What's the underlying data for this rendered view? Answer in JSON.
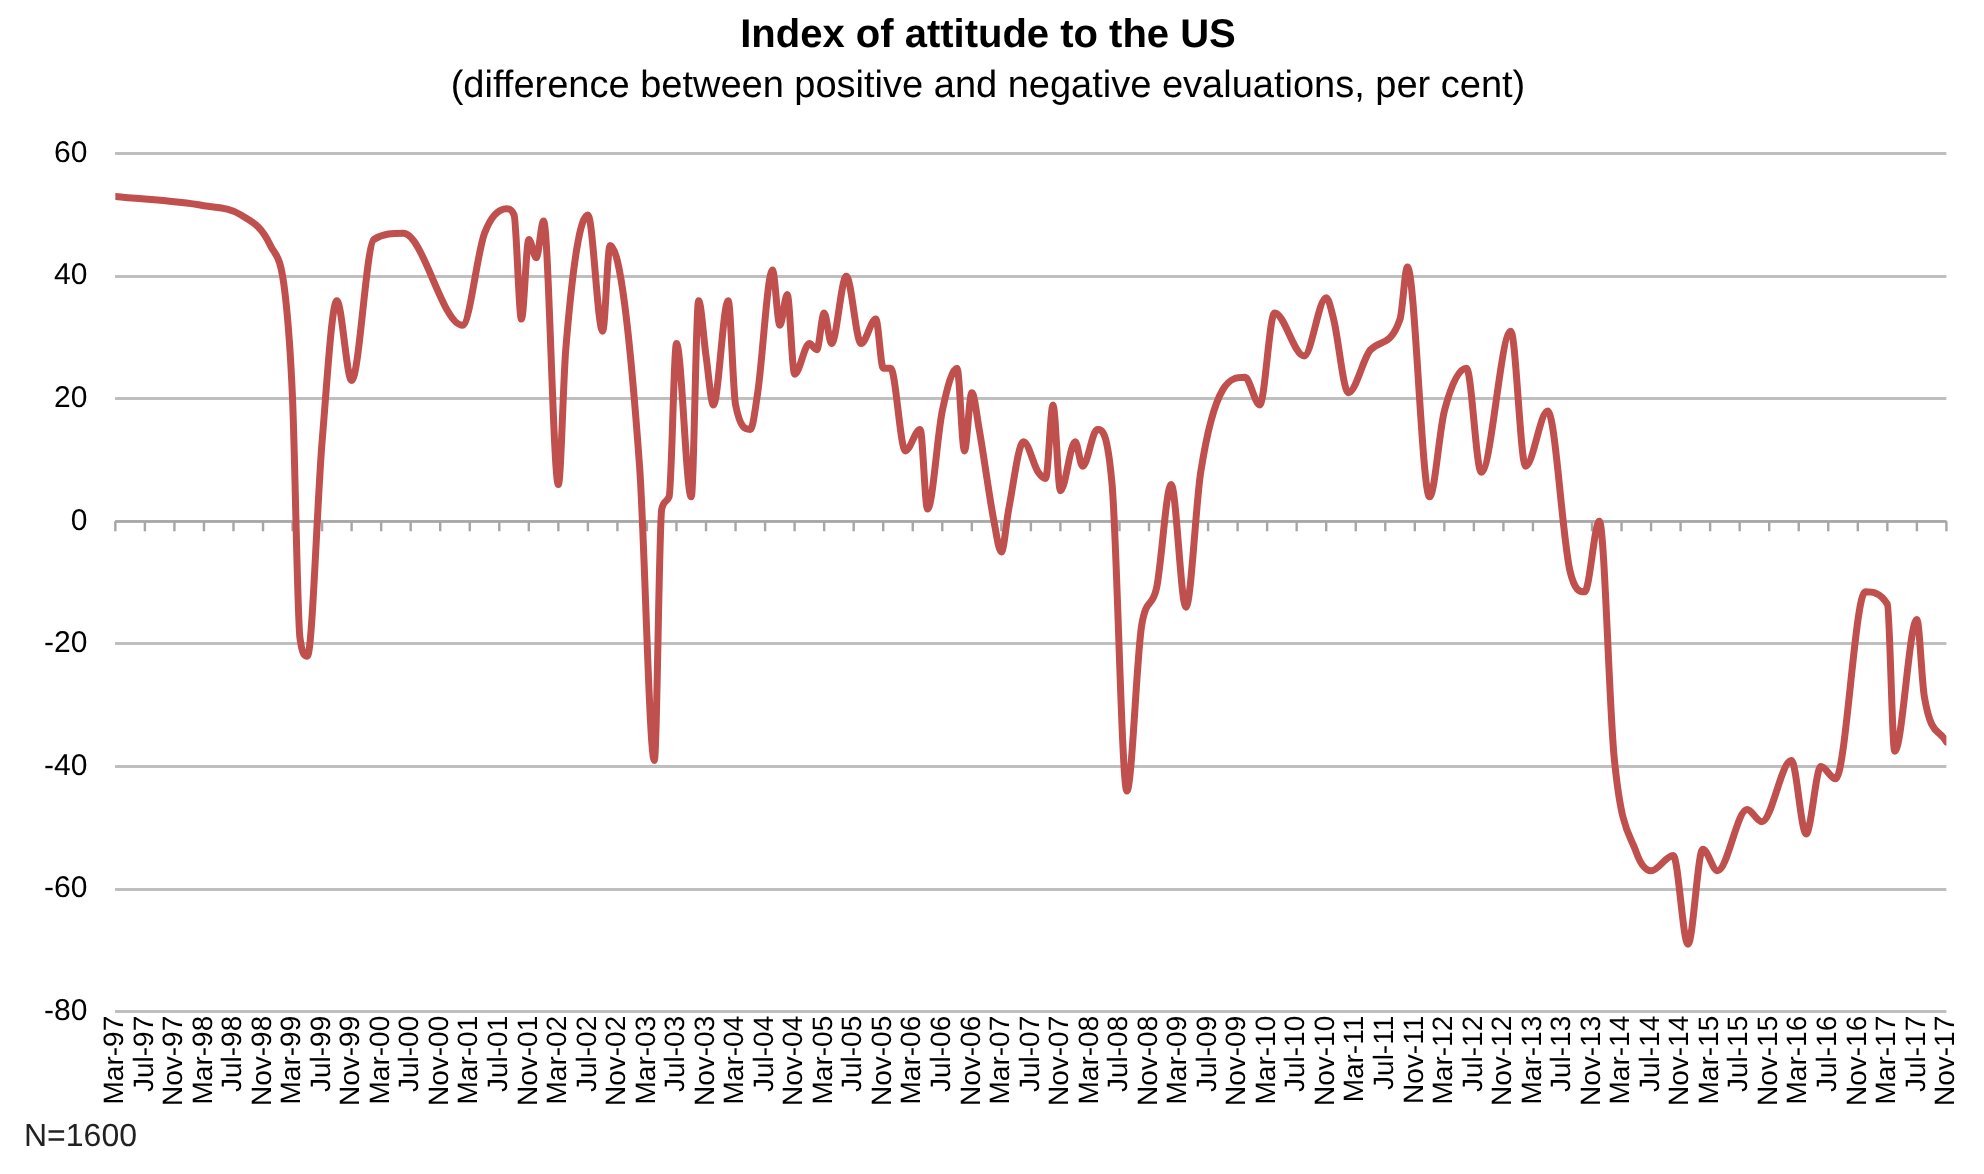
{
  "chart_data": {
    "type": "line",
    "title": "Index of attitude to the US",
    "subtitle": "(difference between positive and negative evaluations, per cent)",
    "annotations": [
      "N=1600"
    ],
    "xlim": [
      "1997-03",
      "2017-11"
    ],
    "xticks": [
      {
        "value": "1997-03",
        "label": "Mar-97"
      },
      {
        "value": "1997-07",
        "label": "Jul-97"
      },
      {
        "value": "1997-11",
        "label": "Nov-97"
      },
      {
        "value": "1998-03",
        "label": "Mar-98"
      },
      {
        "value": "1998-07",
        "label": "Jul-98"
      },
      {
        "value": "1998-11",
        "label": "Nov-98"
      },
      {
        "value": "1999-03",
        "label": "Mar-99"
      },
      {
        "value": "1999-07",
        "label": "Jul-99"
      },
      {
        "value": "1999-11",
        "label": "Nov-99"
      },
      {
        "value": "2000-03",
        "label": "Mar-00"
      },
      {
        "value": "2000-07",
        "label": "Jul-00"
      },
      {
        "value": "2000-11",
        "label": "Nov-00"
      },
      {
        "value": "2001-03",
        "label": "Mar-01"
      },
      {
        "value": "2001-07",
        "label": "Jul-01"
      },
      {
        "value": "2001-11",
        "label": "Nov-01"
      },
      {
        "value": "2002-03",
        "label": "Mar-02"
      },
      {
        "value": "2002-07",
        "label": "Jul-02"
      },
      {
        "value": "2002-11",
        "label": "Nov-02"
      },
      {
        "value": "2003-03",
        "label": "Mar-03"
      },
      {
        "value": "2003-07",
        "label": "Jul-03"
      },
      {
        "value": "2003-11",
        "label": "Nov-03"
      },
      {
        "value": "2004-03",
        "label": "Mar-04"
      },
      {
        "value": "2004-07",
        "label": "Jul-04"
      },
      {
        "value": "2004-11",
        "label": "Nov-04"
      },
      {
        "value": "2005-03",
        "label": "Mar-05"
      },
      {
        "value": "2005-07",
        "label": "Jul-05"
      },
      {
        "value": "2005-11",
        "label": "Nov-05"
      },
      {
        "value": "2006-03",
        "label": "Mar-06"
      },
      {
        "value": "2006-07",
        "label": "Jul-06"
      },
      {
        "value": "2006-11",
        "label": "Nov-06"
      },
      {
        "value": "2007-03",
        "label": "Mar-07"
      },
      {
        "value": "2007-07",
        "label": "Jul-07"
      },
      {
        "value": "2007-11",
        "label": "Nov-07"
      },
      {
        "value": "2008-03",
        "label": "Mar-08"
      },
      {
        "value": "2008-07",
        "label": "Jul-08"
      },
      {
        "value": "2008-11",
        "label": "Nov-08"
      },
      {
        "value": "2009-03",
        "label": "Mar-09"
      },
      {
        "value": "2009-07",
        "label": "Jul-09"
      },
      {
        "value": "2009-11",
        "label": "Nov-09"
      },
      {
        "value": "2010-03",
        "label": "Mar-10"
      },
      {
        "value": "2010-07",
        "label": "Jul-10"
      },
      {
        "value": "2010-11",
        "label": "Nov-10"
      },
      {
        "value": "2011-03",
        "label": "Mar-11"
      },
      {
        "value": "2011-07",
        "label": "Jul-11"
      },
      {
        "value": "2011-11",
        "label": "Nov-11"
      },
      {
        "value": "2012-03",
        "label": "Mar-12"
      },
      {
        "value": "2012-07",
        "label": "Jul-12"
      },
      {
        "value": "2012-11",
        "label": "Nov-12"
      },
      {
        "value": "2013-03",
        "label": "Mar-13"
      },
      {
        "value": "2013-07",
        "label": "Jul-13"
      },
      {
        "value": "2013-11",
        "label": "Nov-13"
      },
      {
        "value": "2014-03",
        "label": "Mar-14"
      },
      {
        "value": "2014-07",
        "label": "Jul-14"
      },
      {
        "value": "2014-11",
        "label": "Nov-14"
      },
      {
        "value": "2015-03",
        "label": "Mar-15"
      },
      {
        "value": "2015-07",
        "label": "Jul-15"
      },
      {
        "value": "2015-11",
        "label": "Nov-15"
      },
      {
        "value": "2016-03",
        "label": "Mar-16"
      },
      {
        "value": "2016-07",
        "label": "Jul-16"
      },
      {
        "value": "2016-11",
        "label": "Nov-16"
      },
      {
        "value": "2017-03",
        "label": "Mar-17"
      },
      {
        "value": "2017-07",
        "label": "Jul-17"
      },
      {
        "value": "2017-11",
        "label": "Nov-17"
      }
    ],
    "ylim": [
      -80,
      60
    ],
    "yticks": [
      -80,
      -60,
      -40,
      -20,
      0,
      20,
      40,
      60
    ],
    "grid": "y",
    "legend": false,
    "marker": "none",
    "line_style": "solid",
    "x": [
      "1997-03",
      "1998-03",
      "1998-08",
      "1998-12",
      "1999-02",
      "1999-03",
      "1999-04",
      "1999-05",
      "1999-07",
      "1999-09",
      "1999-11",
      "2000-02",
      "2000-06",
      "2001-02",
      "2001-05",
      "2001-08",
      "2001-09",
      "2001-10",
      "2001-11",
      "2001-12",
      "2002-01",
      "2002-03",
      "2002-04",
      "2002-07",
      "2002-09",
      "2002-10",
      "2003-02",
      "2003-04",
      "2003-05",
      "2003-06",
      "2003-07",
      "2003-09",
      "2003-10",
      "2003-11",
      "2003-12",
      "2004-02",
      "2004-03",
      "2004-05",
      "2004-06",
      "2004-08",
      "2004-09",
      "2004-10",
      "2004-11",
      "2005-01",
      "2005-02",
      "2005-03",
      "2005-04",
      "2005-06",
      "2005-08",
      "2005-10",
      "2005-11",
      "2005-12",
      "2006-02",
      "2006-04",
      "2006-05",
      "2006-07",
      "2006-09",
      "2006-10",
      "2006-11",
      "2006-12",
      "2007-02",
      "2007-03",
      "2007-04",
      "2007-06",
      "2007-08",
      "2007-09",
      "2007-10",
      "2007-11",
      "2008-01",
      "2008-02",
      "2008-04",
      "2008-06",
      "2008-08",
      "2008-10",
      "2008-12",
      "2009-02",
      "2009-04",
      "2009-06",
      "2009-09",
      "2009-12",
      "2010-02",
      "2010-04",
      "2010-08",
      "2010-11",
      "2010-12",
      "2011-02",
      "2011-05",
      "2011-09",
      "2011-10",
      "2012-01",
      "2012-03",
      "2012-06",
      "2012-08",
      "2012-12",
      "2013-02",
      "2013-05",
      "2013-08",
      "2013-10",
      "2013-12",
      "2014-02",
      "2014-05",
      "2014-07",
      "2014-10",
      "2014-12",
      "2015-02",
      "2015-04",
      "2015-08",
      "2015-10",
      "2016-02",
      "2016-04",
      "2016-06",
      "2016-08",
      "2016-12",
      "2017-03",
      "2017-04",
      "2017-07",
      "2017-08",
      "2017-11"
    ],
    "series": [
      {
        "color": "#c0504d",
        "values": [
          53,
          51.5,
          50,
          45,
          37,
          20,
          -19,
          -22,
          13,
          36,
          23,
          46,
          47,
          32,
          47,
          51,
          50,
          33,
          46,
          43,
          49,
          6,
          28,
          50,
          31,
          45,
          9,
          -39,
          2,
          4,
          29,
          4,
          36,
          27,
          19,
          36,
          19,
          15,
          21,
          41,
          32,
          37,
          24,
          29,
          28,
          34,
          29,
          40,
          29,
          33,
          25,
          25,
          11.5,
          15,
          2,
          18,
          25,
          11.5,
          21,
          15,
          0,
          -5,
          2,
          13,
          8,
          7,
          19,
          5,
          13,
          9,
          15,
          6,
          -44,
          -17,
          -11,
          6,
          -14,
          8,
          21.5,
          23.5,
          19,
          34,
          27,
          36.5,
          33,
          21,
          28,
          33,
          41.5,
          4,
          18,
          25,
          8,
          31,
          9,
          18,
          -8,
          -11.5,
          0,
          -38.5,
          -54,
          -57,
          -54.5,
          -69,
          -53.5,
          -57,
          -47,
          -49,
          -39,
          -51,
          -40,
          -42,
          -11.5,
          -13.5,
          -37.5,
          -16,
          -28.5,
          -36
        ]
      }
    ]
  }
}
